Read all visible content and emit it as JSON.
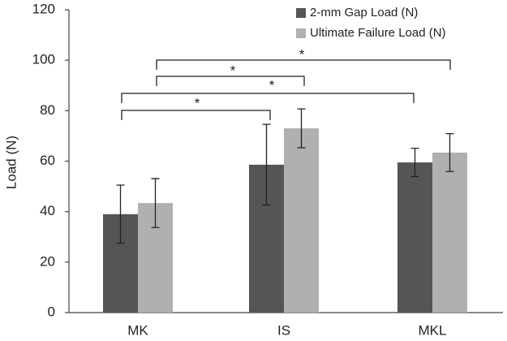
{
  "chart_data": {
    "type": "bar",
    "y_label": "Load (N)",
    "categories": [
      "MK",
      "IS",
      "MKL"
    ],
    "series": [
      {
        "name": "2-mm Gap Load (N)",
        "color": "#555555",
        "values": [
          39,
          58.6,
          59.5
        ],
        "errors": [
          11.5,
          16,
          5.6
        ]
      },
      {
        "name": "Ultimate Failure Load (N)",
        "color": "#b0b0b0",
        "values": [
          43.4,
          73,
          63.4
        ],
        "errors": [
          9.7,
          7.7,
          7.5
        ]
      }
    ],
    "ylim": [
      0,
      120
    ],
    "yticks": [
      0,
      20,
      40,
      60,
      80,
      100,
      120
    ],
    "annotations": [
      "*",
      "*",
      "*",
      "*"
    ]
  }
}
